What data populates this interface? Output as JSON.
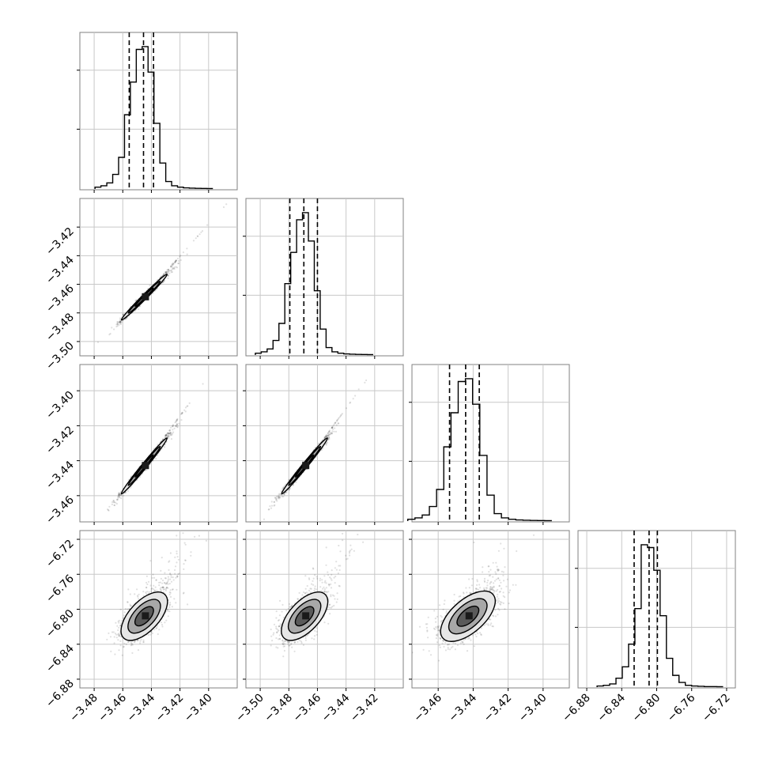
{
  "chart_data": {
    "type": "corner",
    "title": "",
    "ncols": 4,
    "grid": true,
    "parameters": [
      {
        "name": "",
        "range": [
          -3.49,
          -3.38
        ],
        "ticks": [
          -3.48,
          -3.46,
          -3.44,
          -3.42,
          -3.4
        ],
        "tick_labels": [
          "−3.48",
          "−3.46",
          "−3.44",
          "−3.42",
          "−3.40"
        ],
        "center": -3.445,
        "sigma": 0.008,
        "quantiles": [
          -3.4555,
          -3.4455,
          -3.4385
        ],
        "hist": [
          1,
          2,
          4,
          10,
          22,
          52,
          75,
          98,
          100,
          82,
          46,
          18,
          5,
          2,
          1,
          0.5,
          0.3,
          0.2,
          0.1,
          0.05
        ]
      },
      {
        "name": "",
        "range": [
          -3.51,
          -3.4
        ],
        "ticks": [
          -3.5,
          -3.48,
          -3.46,
          -3.44,
          -3.42
        ],
        "tick_labels": [
          "−3.50",
          "−3.48",
          "−3.46",
          "−3.44",
          "−3.42"
        ],
        "center": -3.469,
        "sigma": 0.008,
        "quantiles": [
          -3.4793,
          -3.4695,
          -3.46
        ],
        "hist": [
          1,
          2,
          4,
          10,
          22,
          50,
          72,
          95,
          100,
          80,
          45,
          18,
          5,
          2,
          1,
          0.5,
          0.3,
          0.2,
          0.1,
          0.05
        ]
      },
      {
        "name": "",
        "range": [
          -3.475,
          -3.385
        ],
        "ticks": [
          -3.46,
          -3.44,
          -3.42,
          -3.4
        ],
        "tick_labels": [
          "−3.46",
          "−3.44",
          "−3.42",
          "−3.40"
        ],
        "center": -3.443,
        "sigma": 0.008,
        "quantiles": [
          -3.4535,
          -3.4443,
          -3.4365
        ],
        "hist": [
          1,
          2,
          4,
          10,
          22,
          52,
          76,
          98,
          100,
          82,
          46,
          18,
          5,
          2,
          1,
          0.5,
          0.3,
          0.2,
          0.1,
          0.05
        ]
      },
      {
        "name": "",
        "range": [
          -6.89,
          -6.71
        ],
        "ticks": [
          -6.88,
          -6.84,
          -6.8,
          -6.76,
          -6.72
        ],
        "tick_labels": [
          "−6.88",
          "−6.84",
          "−6.80",
          "−6.76",
          "−6.72"
        ],
        "center": -6.808,
        "sigma": 0.014,
        "quantiles": [
          -6.8258,
          -6.8087,
          -6.7992
        ],
        "hist": [
          0.5,
          1,
          2,
          6,
          14,
          30,
          55,
          100,
          98,
          82,
          50,
          20,
          8,
          3,
          1,
          0.5,
          0.3,
          0.1,
          0.1,
          0.05
        ]
      }
    ],
    "correlations": {
      "1-0": 0.99,
      "2-0": 0.99,
      "2-1": 0.99,
      "3-0": 0.6,
      "3-1": 0.6,
      "3-2": 0.6
    },
    "colors": {
      "points": "#000000",
      "frame": "#808080",
      "grid": "#c8c8c8",
      "contour_levels": [
        "#e6e6e6",
        "#a8a8a8",
        "#5a5a5a",
        "#1a1a1a"
      ]
    }
  }
}
